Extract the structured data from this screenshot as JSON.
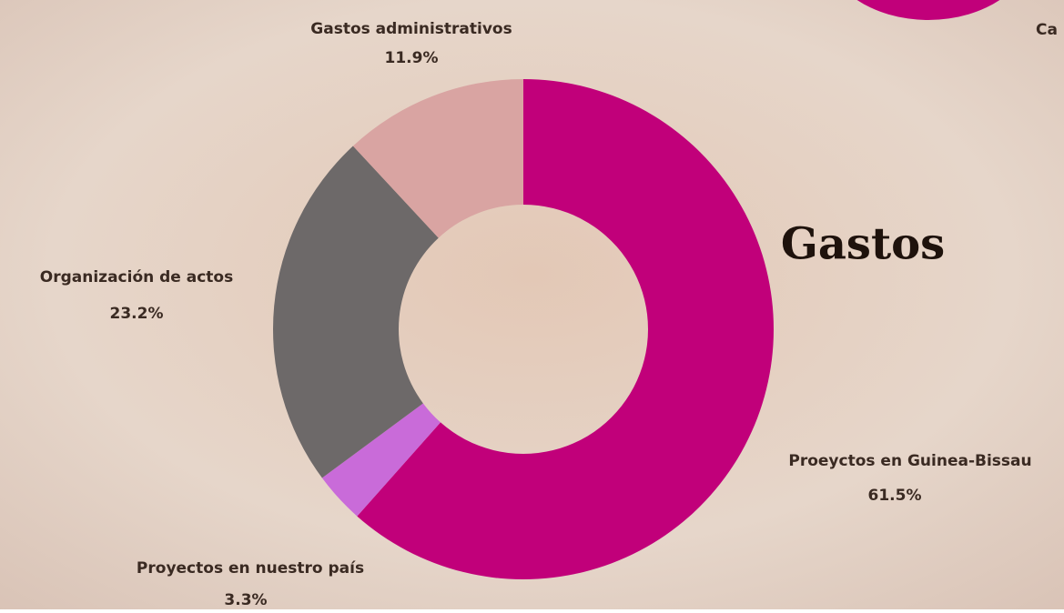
{
  "chart_data": {
    "type": "donut",
    "title": "Gastos",
    "categories": [
      "Proeyctos en Guinea-Bissau",
      "Proyectos en nuestro país",
      "Organización de actos",
      "Gastos administrativos"
    ],
    "values": [
      61.5,
      3.3,
      23.2,
      11.9
    ],
    "value_labels": [
      "61.5%",
      "3.3%",
      "23.2%",
      "11.9%"
    ],
    "colors": [
      "#c1007a",
      "#c96bd9",
      "#6d6969",
      "#d9a4a2"
    ]
  },
  "cropped_text": "Ca"
}
